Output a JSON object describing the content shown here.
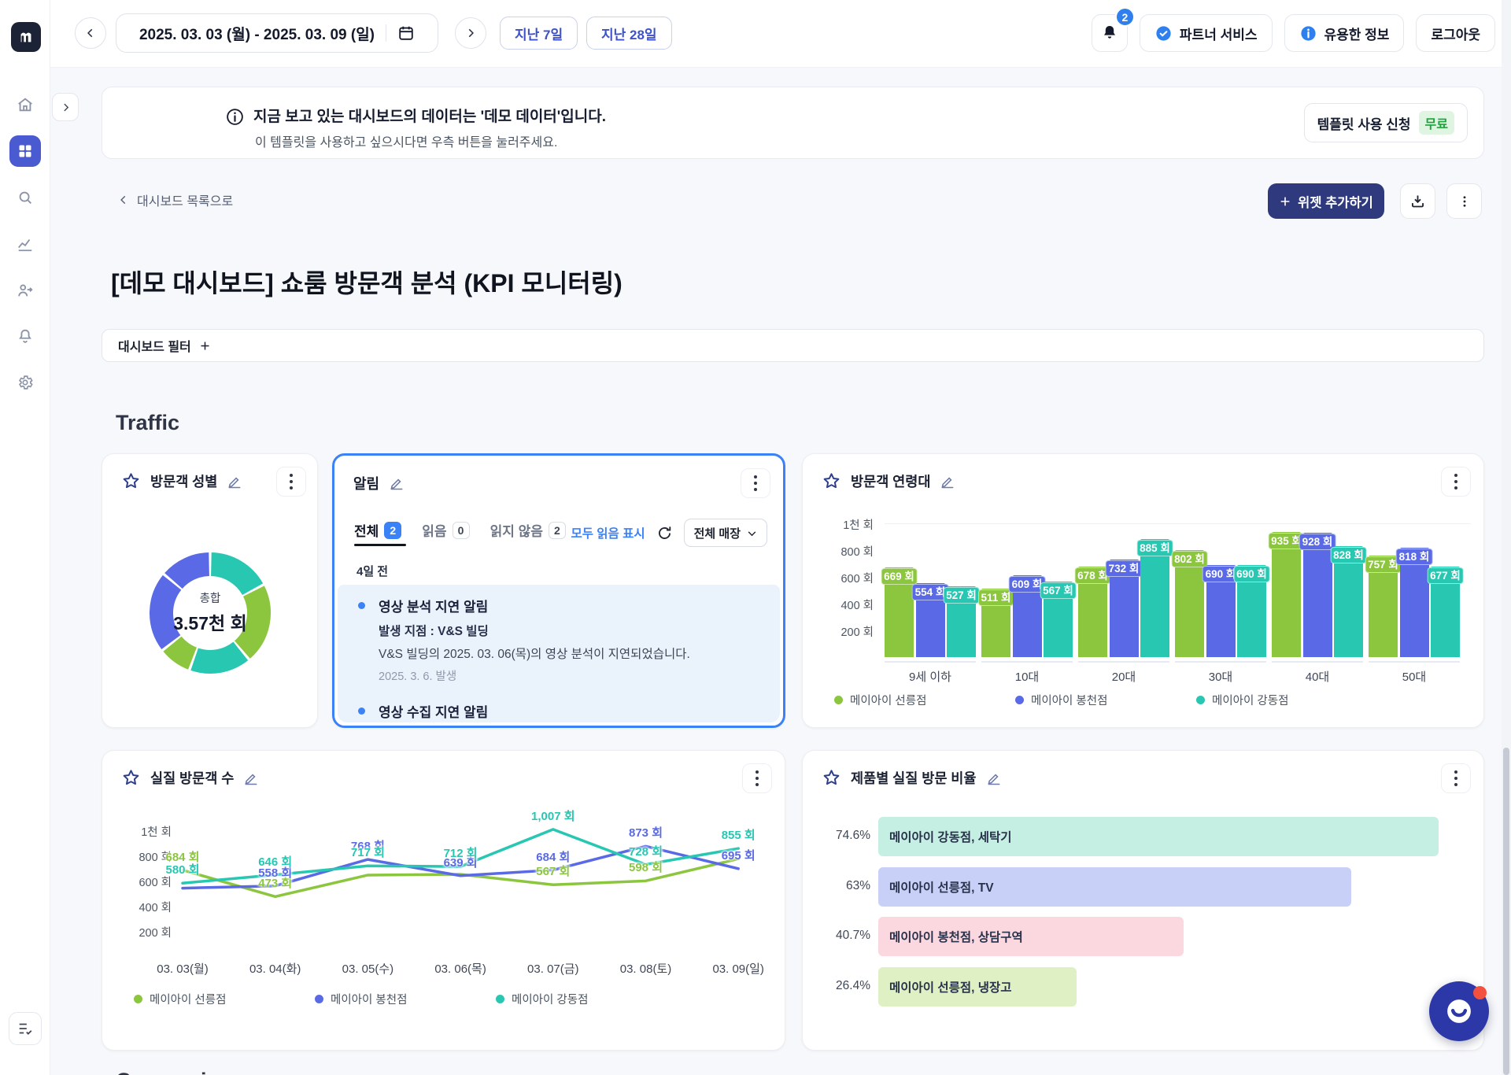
{
  "colors": {
    "green": "#8CC63F",
    "blue": "#5A6AE6",
    "teal": "#27C7B2",
    "accent_blue": "#3B82F6",
    "primary_dark": "#2E3A7D",
    "sidebar_active": "#4A5AD1",
    "indigo_text": "#3D52C8",
    "badge_green_bg": "#DFF5E2",
    "badge_green_text": "#1EA43B",
    "bell_badge": "#2F80ED",
    "notif_bg": "#EAF2FB",
    "pastel_mint": "#C5EFE2",
    "pastel_periwinkle": "#C9D0F8",
    "pastel_pink": "#FBD7E0",
    "pastel_lime": "#DEF0C4"
  },
  "topbar": {
    "date_range": "2025. 03. 03 (월) - 2025. 03. 09 (일)",
    "last_7_days": "지난 7일",
    "last_28_days": "지난 28일",
    "bell_badge_count": "2",
    "partner_service": "파트너 서비스",
    "useful_info": "유용한 정보",
    "logout": "로그아웃"
  },
  "banner": {
    "title": "지금 보고 있는 대시보드의 데이터는 '데모 데이터'입니다.",
    "subtitle": "이 템플릿을 사용하고 싶으시다면 우측 버튼을 눌러주세요.",
    "cta_label": "템플릿 사용 신청",
    "cta_badge": "무료"
  },
  "page": {
    "breadcrumb": "대시보드 목록으로",
    "title": "[데모 대시보드] 쇼룸 방문객 분석 (KPI 모니터링)",
    "add_widget_label": "위젯 추가하기",
    "filter_label": "대시보드 필터",
    "section_traffic": "Traffic",
    "section_conversion": "Conversion"
  },
  "cards": {
    "gender": {
      "title": "방문객 성별"
    },
    "alerts": {
      "title": "알림",
      "tabs": [
        {
          "label": "전체",
          "count": "2",
          "active": true
        },
        {
          "label": "읽음",
          "count": "0",
          "active": false
        },
        {
          "label": "읽지 않음",
          "count": "2",
          "active": false
        }
      ],
      "mark_all_read": "모두 읽음 표시",
      "store_filter": "전체 매장",
      "group_label": "4일 전",
      "notifications": [
        {
          "title": "영상 분석 지연 알림",
          "location": "발생 지점 : V&S 빌딩",
          "description": "V&S 빌딩의 2025. 03. 06(목)의 영상 분석이 지연되었습니다.",
          "date": "2025. 3. 6. 발생"
        },
        {
          "title": "영상 수집 지연 알림"
        }
      ]
    },
    "age": {
      "title": "방문객 연령대"
    },
    "visitors": {
      "title": "실질 방문객 수"
    },
    "products": {
      "title": "제품별 실질 방문 비율"
    }
  },
  "chart_data": [
    {
      "id": "gender",
      "type": "pie",
      "title": "방문객 성별",
      "center_label": "총합",
      "center_value": "3.57천 회",
      "segments": [
        {
          "color": "teal",
          "deg": 62
        },
        {
          "color": "green",
          "deg": 78
        },
        {
          "color": "teal",
          "deg": 60
        },
        {
          "color": "green",
          "deg": 32
        },
        {
          "color": "blue",
          "deg": 78
        },
        {
          "color": "blue",
          "deg": 50
        }
      ]
    },
    {
      "id": "age",
      "type": "bar",
      "title": "방문객 연령대",
      "unit": "회",
      "bar_label_suffix": " 회",
      "categories": [
        "9세 이하",
        "10대",
        "20대",
        "30대",
        "40대",
        "50대"
      ],
      "yticks": [
        {
          "label": "1천 회",
          "value": 1000
        },
        {
          "label": "800 회",
          "value": 800
        },
        {
          "label": "600 회",
          "value": 600
        },
        {
          "label": "400 회",
          "value": 400
        },
        {
          "label": "200 회",
          "value": 200
        }
      ],
      "ylim": [
        0,
        1000
      ],
      "series": [
        {
          "name": "메이아이 선릉점",
          "color": "green",
          "values": [
            669,
            511,
            678,
            802,
            935,
            757
          ]
        },
        {
          "name": "메이아이 봉천점",
          "color": "blue",
          "values": [
            554,
            609,
            732,
            690,
            928,
            818
          ]
        },
        {
          "name": "메이아이 강동점",
          "color": "teal",
          "values": [
            527,
            567,
            885,
            690,
            828,
            677
          ]
        }
      ]
    },
    {
      "id": "visitors",
      "type": "line",
      "title": "실질 방문객 수",
      "unit": "회",
      "x": [
        "03. 03(월)",
        "03. 04(화)",
        "03. 05(수)",
        "03. 06(목)",
        "03. 07(금)",
        "03. 08(토)",
        "03. 09(일)"
      ],
      "yticks": [
        {
          "label": "1천 회",
          "value": 1000
        },
        {
          "label": "800 회",
          "value": 800
        },
        {
          "label": "600 회",
          "value": 600
        },
        {
          "label": "400 회",
          "value": 400
        },
        {
          "label": "200 회",
          "value": 200
        }
      ],
      "ylim": [
        0,
        1100
      ],
      "series": [
        {
          "name": "메이아이 선릉점",
          "color": "green",
          "values": [
            684,
            473,
            644,
            650,
            567,
            598,
            773
          ],
          "labels": [
            "684 회",
            "473 회",
            null,
            null,
            "567 회",
            "598 회",
            null
          ]
        },
        {
          "name": "메이아이 봉천점",
          "color": "blue",
          "values": [
            540,
            558,
            768,
            639,
            684,
            873,
            695
          ],
          "labels": [
            null,
            "558 회",
            "768 회",
            "639 회",
            "684 회",
            "873 회",
            "695 회"
          ]
        },
        {
          "name": "메이아이 강동점",
          "color": "teal",
          "values": [
            580,
            646,
            717,
            712,
            1007,
            728,
            855
          ],
          "labels": [
            "580 회",
            "646 회",
            "717 회",
            "712 회",
            "1,007 회",
            "728 회",
            "855 회"
          ]
        }
      ]
    },
    {
      "id": "products",
      "type": "bar-horizontal",
      "title": "제품별 실질 방문 비율",
      "items": [
        {
          "pct_label": "74.6%",
          "value": 74.6,
          "label": "메이아이 강동점, 세탁기",
          "color_key": "pastel_mint"
        },
        {
          "pct_label": "63%",
          "value": 63,
          "label": "메이아이 선릉점, TV",
          "color_key": "pastel_periwinkle"
        },
        {
          "pct_label": "40.7%",
          "value": 40.7,
          "label": "메이아이 봉천점, 상담구역",
          "color_key": "pastel_pink"
        },
        {
          "pct_label": "26.4%",
          "value": 26.4,
          "label": "메이아이 선릉점, 냉장고",
          "color_key": "pastel_lime"
        }
      ]
    }
  ]
}
